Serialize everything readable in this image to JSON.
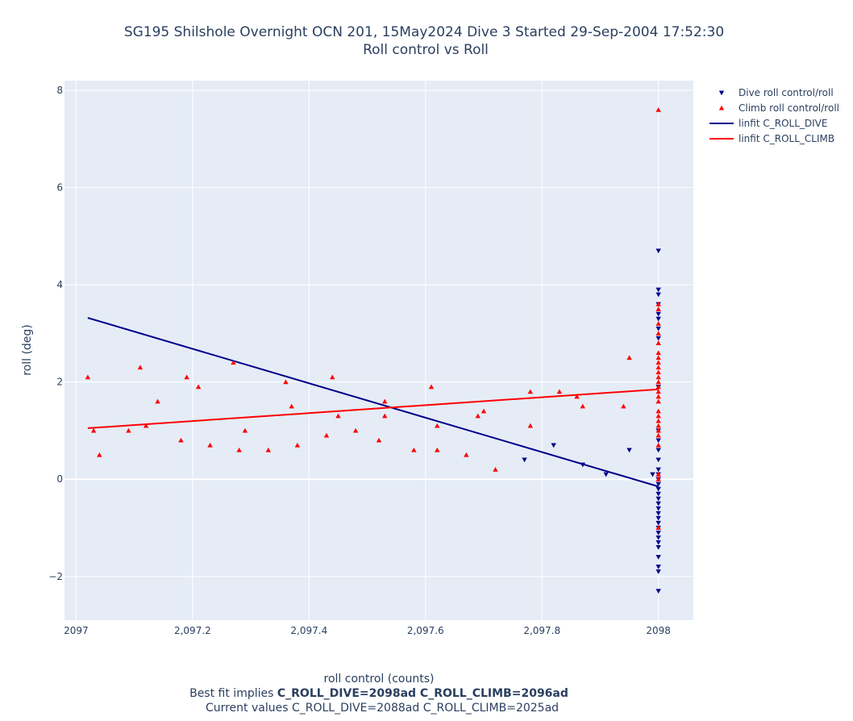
{
  "chart_data": {
    "type": "scatter",
    "title_lines": [
      "SG195 Shilshole Overnight OCN 201, 15May2024 Dive 3 Started 29-Sep-2004 17:52:30",
      "Roll control vs Roll"
    ],
    "xlabel": "roll control (counts)",
    "ylabel": "roll (deg)",
    "caption": {
      "line2_prefix": "Best fit implies ",
      "line2_bold": "C_ROLL_DIVE=2098ad C_ROLL_CLIMB=2096ad",
      "line3": "Current values C_ROLL_DIVE=2088ad C_ROLL_CLIMB=2025ad"
    },
    "xlim": [
      2096.98,
      2098.06
    ],
    "ylim": [
      -2.9,
      8.2
    ],
    "x_ticks": [
      {
        "value": 2097,
        "label": "2097"
      },
      {
        "value": 2097.2,
        "label": "2,097.2"
      },
      {
        "value": 2097.4,
        "label": "2,097.4"
      },
      {
        "value": 2097.6,
        "label": "2,097.6"
      },
      {
        "value": 2097.8,
        "label": "2,097.8"
      },
      {
        "value": 2098,
        "label": "2098"
      }
    ],
    "y_ticks": [
      {
        "value": -2,
        "label": "−2"
      },
      {
        "value": 0,
        "label": "0"
      },
      {
        "value": 2,
        "label": "2"
      },
      {
        "value": 4,
        "label": "4"
      },
      {
        "value": 6,
        "label": "6"
      },
      {
        "value": 8,
        "label": "8"
      }
    ],
    "grid": true,
    "legend_position": "top-right outside",
    "series": [
      {
        "name": "Dive roll control/roll",
        "kind": "markers",
        "marker": "triangle-down",
        "color": "#00008b",
        "x": [
          2097.77,
          2097.82,
          2097.87,
          2097.91,
          2097.95,
          2097.99,
          2098,
          2098,
          2098,
          2098,
          2098,
          2098,
          2098,
          2098,
          2098,
          2098,
          2098,
          2098,
          2098,
          2098,
          2098,
          2098,
          2098,
          2098,
          2098,
          2098,
          2098,
          2098,
          2098,
          2098,
          2098,
          2098,
          2098,
          2098,
          2098,
          2098,
          2098,
          2098,
          2098,
          2098
        ],
        "y": [
          0.4,
          0.7,
          0.3,
          0.1,
          0.6,
          0.1,
          4.7,
          3.9,
          3.8,
          3.6,
          3.4,
          3.3,
          3.1,
          2.9,
          1.9,
          1.0,
          0.8,
          0.6,
          0.4,
          0.1,
          0.0,
          -0.1,
          -0.2,
          -0.3,
          -0.4,
          -0.5,
          -0.6,
          -0.7,
          -0.8,
          -0.9,
          -1.0,
          -1.1,
          -1.2,
          -1.3,
          -1.4,
          -1.6,
          -1.8,
          -1.9,
          -2.3,
          0.2
        ]
      },
      {
        "name": "Climb roll control/roll",
        "kind": "markers",
        "marker": "triangle-up",
        "color": "#ff0000",
        "x": [
          2097.02,
          2097.03,
          2097.04,
          2097.09,
          2097.11,
          2097.12,
          2097.14,
          2097.18,
          2097.19,
          2097.21,
          2097.23,
          2097.27,
          2097.28,
          2097.29,
          2097.33,
          2097.36,
          2097.37,
          2097.38,
          2097.43,
          2097.44,
          2097.45,
          2097.48,
          2097.52,
          2097.53,
          2097.53,
          2097.58,
          2097.61,
          2097.62,
          2097.62,
          2097.67,
          2097.69,
          2097.7,
          2097.72,
          2097.78,
          2097.78,
          2097.83,
          2097.86,
          2097.87,
          2097.94,
          2097.95,
          2098,
          2098,
          2098,
          2098,
          2098,
          2098,
          2098,
          2098,
          2098,
          2098,
          2098,
          2098,
          2098,
          2098,
          2098,
          2098,
          2098,
          2098,
          2098,
          2098,
          2098,
          2098,
          2098,
          2098,
          2098,
          2098,
          2098
        ],
        "y": [
          2.1,
          1.0,
          0.5,
          1.0,
          2.3,
          1.1,
          1.6,
          0.8,
          2.1,
          1.9,
          0.7,
          2.4,
          0.6,
          1.0,
          0.6,
          2.0,
          1.5,
          0.7,
          0.9,
          2.1,
          1.3,
          1.0,
          0.8,
          1.6,
          1.3,
          0.6,
          1.9,
          1.1,
          0.6,
          0.5,
          1.3,
          1.4,
          0.2,
          1.8,
          1.1,
          1.8,
          1.7,
          1.5,
          1.5,
          2.5,
          7.6,
          3.6,
          3.5,
          3.2,
          3.0,
          2.8,
          2.6,
          2.5,
          2.4,
          2.3,
          2.2,
          2.1,
          2.0,
          1.9,
          1.8,
          1.7,
          1.6,
          1.4,
          1.3,
          1.2,
          1.1,
          1.0,
          0.9,
          0.7,
          0.1,
          0.0,
          -1.0
        ]
      },
      {
        "name": "linfit C_ROLL_DIVE",
        "kind": "line",
        "color": "#00008b",
        "x": [
          2097.02,
          2098.0
        ],
        "y": [
          3.32,
          -0.15
        ]
      },
      {
        "name": "linfit C_ROLL_CLIMB",
        "kind": "line",
        "color": "#ff0000",
        "x": [
          2097.02,
          2098.0
        ],
        "y": [
          1.05,
          1.85
        ]
      }
    ]
  }
}
